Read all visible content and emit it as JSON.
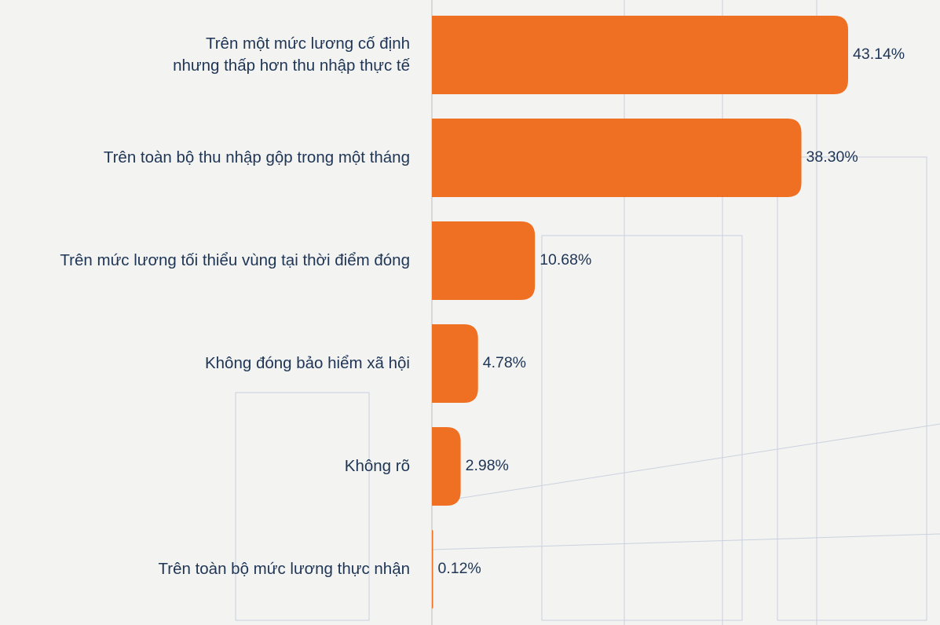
{
  "chart_data": {
    "type": "bar",
    "orientation": "horizontal",
    "categories": [
      "Trên một mức lương cố định\nnhưng thấp hơn thu nhập thực tế",
      "Trên toàn bộ thu nhập gộp trong một tháng",
      "Trên mức lương tối thiểu vùng tại thời điểm đóng",
      "Không đóng bảo hiểm xã hội",
      "Không rõ",
      "Trên toàn bộ mức lương thực nhận"
    ],
    "values": [
      43.14,
      38.3,
      10.68,
      4.78,
      2.98,
      0.12
    ],
    "value_labels": [
      "43.14%",
      "38.30%",
      "10.68%",
      "4.78%",
      "2.98%",
      "0.12%"
    ],
    "color": "#ef7022"
  }
}
